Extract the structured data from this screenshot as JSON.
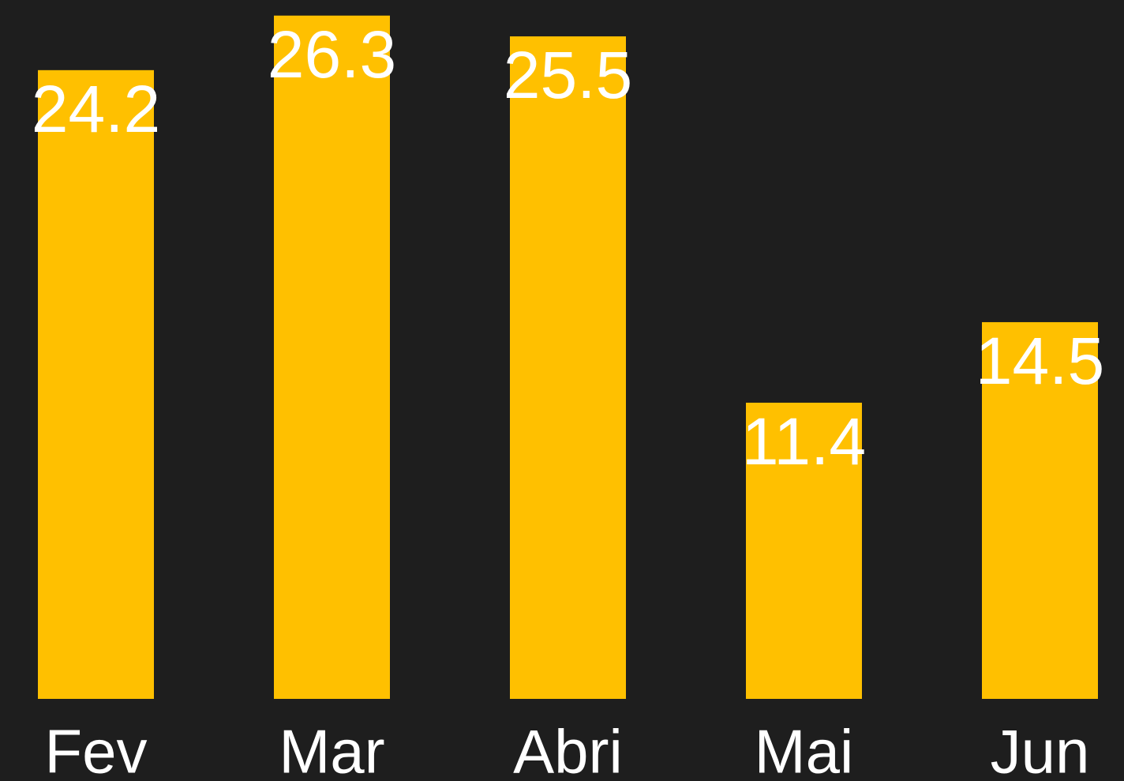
{
  "chart_data": {
    "type": "bar",
    "categories": [
      "Fev",
      "Mar",
      "Abri",
      "Mai",
      "Jun"
    ],
    "values": [
      24.2,
      26.3,
      25.5,
      11.4,
      14.5
    ],
    "color": "#ffc000",
    "ylim": [
      0,
      26.9
    ]
  }
}
